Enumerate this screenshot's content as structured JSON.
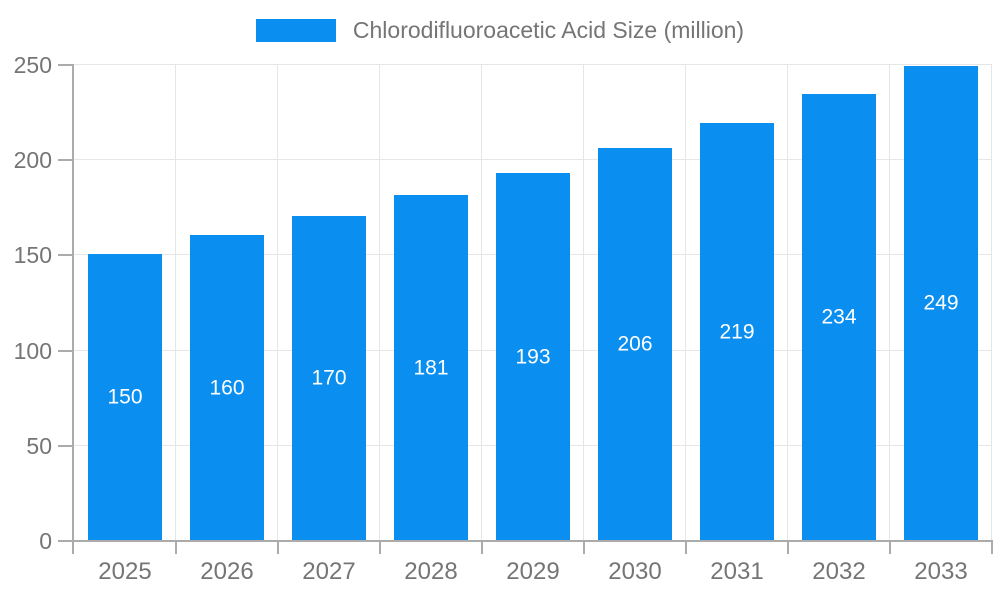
{
  "chart_data": {
    "type": "bar",
    "title": "Chlorodifluoroacetic Acid Size (million)",
    "categories": [
      "2025",
      "2026",
      "2027",
      "2028",
      "2029",
      "2030",
      "2031",
      "2032",
      "2033"
    ],
    "values": [
      150,
      160,
      170,
      181,
      193,
      206,
      219,
      234,
      249
    ],
    "xlabel": "",
    "ylabel": "",
    "ylim": [
      0,
      250
    ],
    "yticks": [
      0,
      50,
      100,
      150,
      200,
      250
    ],
    "grid": true,
    "legend_position": "top-center",
    "legend_entries": [
      "Chlorodifluoroacetic Acid Size (million)"
    ],
    "bar_color": "#0a8ff0",
    "value_label_color": "#ffffff",
    "grid_color": "#e6e6e6",
    "axis_color": "#ababab",
    "tick_label_color": "#757575"
  }
}
